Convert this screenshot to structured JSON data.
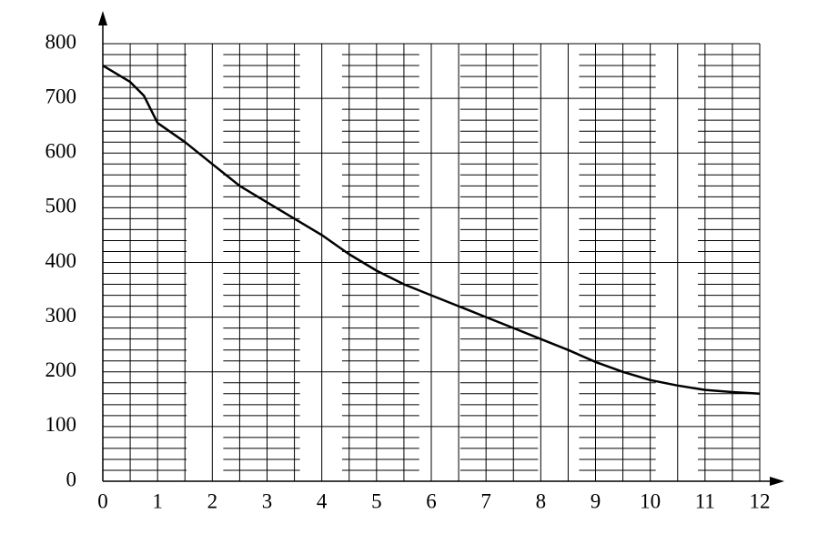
{
  "chart_data": {
    "type": "line",
    "x": [
      0,
      0.5,
      0.75,
      1,
      1.5,
      2,
      2.5,
      3,
      3.5,
      4,
      4.5,
      5,
      5.5,
      6,
      6.5,
      7,
      7.5,
      8,
      8.5,
      9,
      9.5,
      10,
      10.5,
      11,
      11.5,
      12
    ],
    "series": [
      {
        "color": "#000000",
        "values": [
          760,
          730,
          705,
          655,
          620,
          580,
          540,
          510,
          480,
          450,
          415,
          385,
          360,
          340,
          320,
          300,
          280,
          260,
          240,
          218,
          200,
          185,
          175,
          167,
          163,
          160
        ]
      }
    ],
    "xlim": [
      0,
      12
    ],
    "xticks": [
      0,
      1,
      2,
      3,
      4,
      5,
      6,
      7,
      8,
      9,
      10,
      11,
      12
    ],
    "ylim": [
      0,
      800
    ],
    "yticks": [
      0,
      100,
      200,
      300,
      400,
      500,
      600,
      700,
      800
    ],
    "grid": true
  }
}
